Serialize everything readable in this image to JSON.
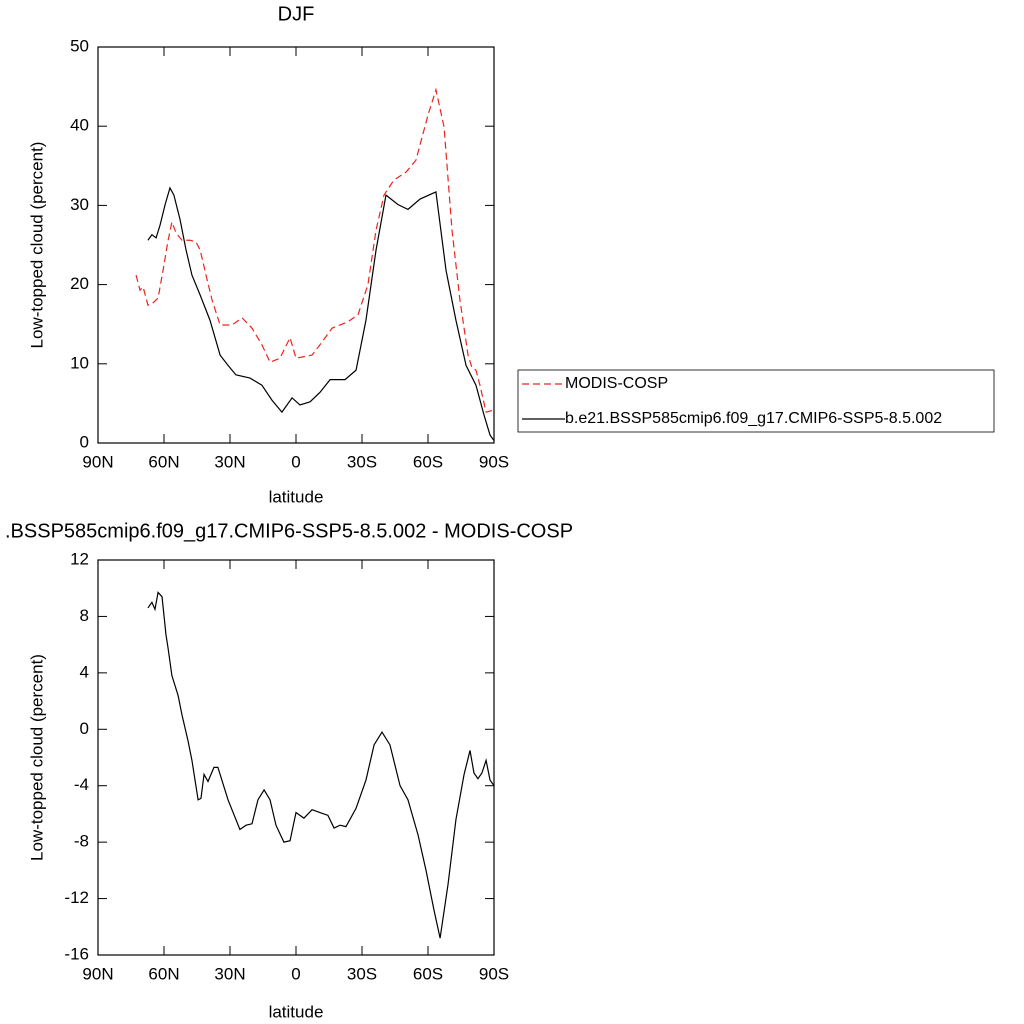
{
  "chart_data": [
    {
      "type": "line",
      "title": "DJF",
      "xlabel": "latitude",
      "ylabel": "Low-topped cloud (percent)",
      "xlim": [
        90,
        -90
      ],
      "xticks": [
        {
          "value": 90,
          "label": "90N"
        },
        {
          "value": 60,
          "label": "60N"
        },
        {
          "value": 30,
          "label": "30N"
        },
        0,
        {
          "value": -30,
          "label": "30S"
        },
        {
          "value": -60,
          "label": "60S"
        },
        {
          "value": -90,
          "label": "90S"
        }
      ],
      "ylim": [
        0,
        50
      ],
      "yticks": [
        0,
        10,
        20,
        30,
        40,
        50
      ],
      "series": [
        {
          "name": "MODIS-COSP",
          "color": "#e8261f",
          "dashed": true,
          "x": [
            72.7,
            70.9,
            69.5,
            67.3,
            65.0,
            62.7,
            60.5,
            58.2,
            56.4,
            54.5,
            51.8,
            48.2,
            45.5,
            43.6,
            40.9,
            38.2,
            34.5,
            29.1,
            24.5,
            20.0,
            15.5,
            11.8,
            7.3,
            2.7,
            0,
            -7.3,
            -10.9,
            -16.4,
            -23.6,
            -28.2,
            -32.7,
            -36.4,
            -40.0,
            -44.5,
            -50.0,
            -54.5,
            -60.0,
            -63.6,
            -67.3,
            -70.9,
            -74.5,
            -78.2,
            -80.0,
            -81.8,
            -83.6,
            -86.4,
            -89.1
          ],
          "values": [
            21.2,
            19.3,
            19.7,
            17.4,
            17.7,
            18.3,
            21.7,
            25.5,
            27.9,
            26.5,
            25.6,
            25.6,
            25.4,
            24.4,
            21.2,
            18.1,
            14.9,
            14.9,
            15.8,
            14.5,
            12.4,
            10.2,
            10.7,
            13.3,
            10.7,
            11.1,
            12.4,
            14.5,
            15.3,
            16.2,
            20.0,
            26.9,
            31.3,
            33.2,
            34.2,
            35.7,
            41.4,
            44.6,
            39.9,
            26.9,
            18.1,
            11.1,
            9.5,
            9.2,
            7.3,
            3.9,
            4.1
          ]
        },
        {
          "name": "b.e21.BSSP585cmip6.f09_g17.CMIP6-SSP5-8.5.002",
          "color": "#000000",
          "dashed": false,
          "x": [
            67.3,
            65.5,
            63.6,
            61.8,
            59.5,
            57.3,
            55.5,
            52.7,
            50.0,
            47.3,
            43.6,
            39.1,
            34.5,
            30.9,
            27.3,
            20.9,
            15.5,
            10.9,
            6.4,
            1.8,
            -1.8,
            -6.4,
            -10.9,
            -15.5,
            -22.3,
            -27.3,
            -31.8,
            -36.4,
            -40.9,
            -46.4,
            -50.9,
            -56.4,
            -63.6,
            -68.2,
            -72.7,
            -77.3,
            -81.8,
            -85.5,
            -88.2,
            -90
          ],
          "values": [
            25.6,
            26.3,
            25.9,
            27.5,
            30.1,
            32.2,
            31.3,
            28.2,
            24.4,
            21.2,
            18.7,
            15.5,
            11.1,
            9.8,
            8.6,
            8.2,
            7.3,
            5.4,
            3.9,
            5.7,
            4.8,
            5.2,
            6.4,
            8.0,
            8.0,
            9.2,
            15.5,
            24.4,
            31.3,
            30.1,
            29.5,
            30.8,
            31.7,
            21.8,
            15.5,
            9.8,
            7.3,
            3.5,
            1.0,
            0.3
          ]
        }
      ]
    },
    {
      "type": "line",
      "title": ".BSSP585cmip6.f09_g17.CMIP6-SSP5-8.5.002 - MODIS-COSP",
      "xlabel": "latitude",
      "ylabel": "Low-topped cloud (percent)",
      "xlim": [
        90,
        -90
      ],
      "xticks": [
        {
          "value": 90,
          "label": "90N"
        },
        {
          "value": 60,
          "label": "60N"
        },
        {
          "value": 30,
          "label": "30N"
        },
        0,
        {
          "value": -30,
          "label": "30S"
        },
        {
          "value": -60,
          "label": "60S"
        },
        {
          "value": -90,
          "label": "90S"
        }
      ],
      "ylim": [
        -16,
        12
      ],
      "yticks": [
        -16,
        -12,
        -8,
        -4,
        0,
        4,
        8,
        12
      ],
      "series": [
        {
          "color": "#000000",
          "dashed": false,
          "x": [
            67.3,
            65.5,
            64.1,
            62.7,
            60.9,
            59.1,
            58.2,
            56.4,
            53.6,
            51.8,
            49.1,
            47.3,
            44.5,
            43.2,
            41.8,
            40.0,
            37.3,
            35.5,
            30.9,
            25.5,
            22.7,
            20.0,
            17.3,
            14.5,
            11.8,
            9.1,
            5.5,
            2.7,
            0,
            -3.6,
            -7.3,
            -10.9,
            -14.5,
            -17.3,
            -20.0,
            -22.7,
            -27.3,
            -31.8,
            -35.5,
            -39.1,
            -42.7,
            -47.3,
            -50.9,
            -55.5,
            -59.1,
            -62.7,
            -65.5,
            -69.1,
            -72.7,
            -76.4,
            -79.1,
            -80.9,
            -82.7,
            -84.5,
            -86.4,
            -88.2,
            -90
          ],
          "values": [
            8.6,
            9.0,
            8.5,
            9.7,
            9.4,
            6.7,
            5.8,
            3.8,
            2.4,
            1.0,
            -0.8,
            -2.2,
            -5.0,
            -4.9,
            -3.2,
            -3.7,
            -2.7,
            -2.7,
            -5.0,
            -7.1,
            -6.8,
            -6.7,
            -5.0,
            -4.3,
            -5.0,
            -6.8,
            -8.0,
            -7.9,
            -5.9,
            -6.3,
            -5.7,
            -5.9,
            -6.1,
            -7.0,
            -6.8,
            -6.9,
            -5.6,
            -3.6,
            -1.1,
            -0.2,
            -1.1,
            -4.0,
            -5.0,
            -7.5,
            -10.0,
            -12.8,
            -14.8,
            -11.0,
            -6.4,
            -3.2,
            -1.5,
            -3.1,
            -3.5,
            -3.1,
            -2.2,
            -3.6,
            -4.0
          ]
        }
      ]
    }
  ]
}
